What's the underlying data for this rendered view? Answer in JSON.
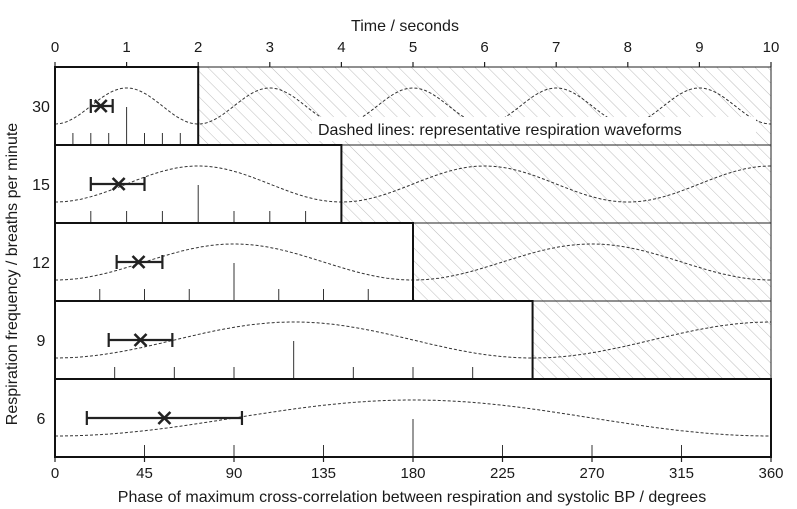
{
  "chart_data": {
    "type": "scatter",
    "title": "",
    "xlabel": "Phase of maximum cross-correlation between respiration and systolic BP / degrees",
    "ylabel": "Respiration frequency / breaths per minute",
    "x2label": "Time / seconds",
    "xlim": [
      0,
      360
    ],
    "x2lim": [
      0,
      10
    ],
    "xticks": [
      "0",
      "45",
      "90",
      "135",
      "180",
      "225",
      "270",
      "315",
      "360"
    ],
    "x2ticks": [
      "0",
      "1",
      "2",
      "3",
      "4",
      "5",
      "6",
      "7",
      "8",
      "9",
      "10"
    ],
    "annotation": "Dashed lines: representative respiration waveforms",
    "rows": [
      {
        "rate_label": "30",
        "breaths_per_min": 30,
        "cycle_seconds": 2,
        "mean_phase_deg": 23,
        "error_low_deg": 18,
        "error_high_deg": 29,
        "tick_markers_deg": [
          9,
          18,
          27,
          36,
          45,
          54,
          63
        ],
        "tall_tick_deg": 36,
        "waveform_period_seconds": 2
      },
      {
        "rate_label": "15",
        "breaths_per_min": 15,
        "cycle_seconds": 4,
        "mean_phase_deg": 32,
        "error_low_deg": 18,
        "error_high_deg": 45,
        "tick_markers_deg": [
          18,
          36,
          54,
          72,
          90,
          108,
          126
        ],
        "tall_tick_deg": 72,
        "waveform_period_seconds": 4
      },
      {
        "rate_label": "12",
        "breaths_per_min": 12,
        "cycle_seconds": 5,
        "mean_phase_deg": 42,
        "error_low_deg": 31,
        "error_high_deg": 54,
        "tick_markers_deg": [
          22.5,
          45,
          67.5,
          90,
          112.5,
          135,
          157.5
        ],
        "tall_tick_deg": 90,
        "waveform_period_seconds": 5
      },
      {
        "rate_label": "9",
        "breaths_per_min": 9,
        "cycle_seconds": 6.67,
        "mean_phase_deg": 43,
        "error_low_deg": 27,
        "error_high_deg": 59,
        "tick_markers_deg": [
          30,
          60,
          90,
          120,
          150,
          180,
          210
        ],
        "tall_tick_deg": 120,
        "waveform_period_seconds": 6.67
      },
      {
        "rate_label": "6",
        "breaths_per_min": 6,
        "cycle_seconds": 10,
        "mean_phase_deg": 55,
        "error_low_deg": 16,
        "error_high_deg": 94,
        "tick_markers_deg": [
          45,
          90,
          135,
          180,
          225,
          270,
          315
        ],
        "tall_tick_deg": 180,
        "waveform_period_seconds": 10
      }
    ]
  }
}
